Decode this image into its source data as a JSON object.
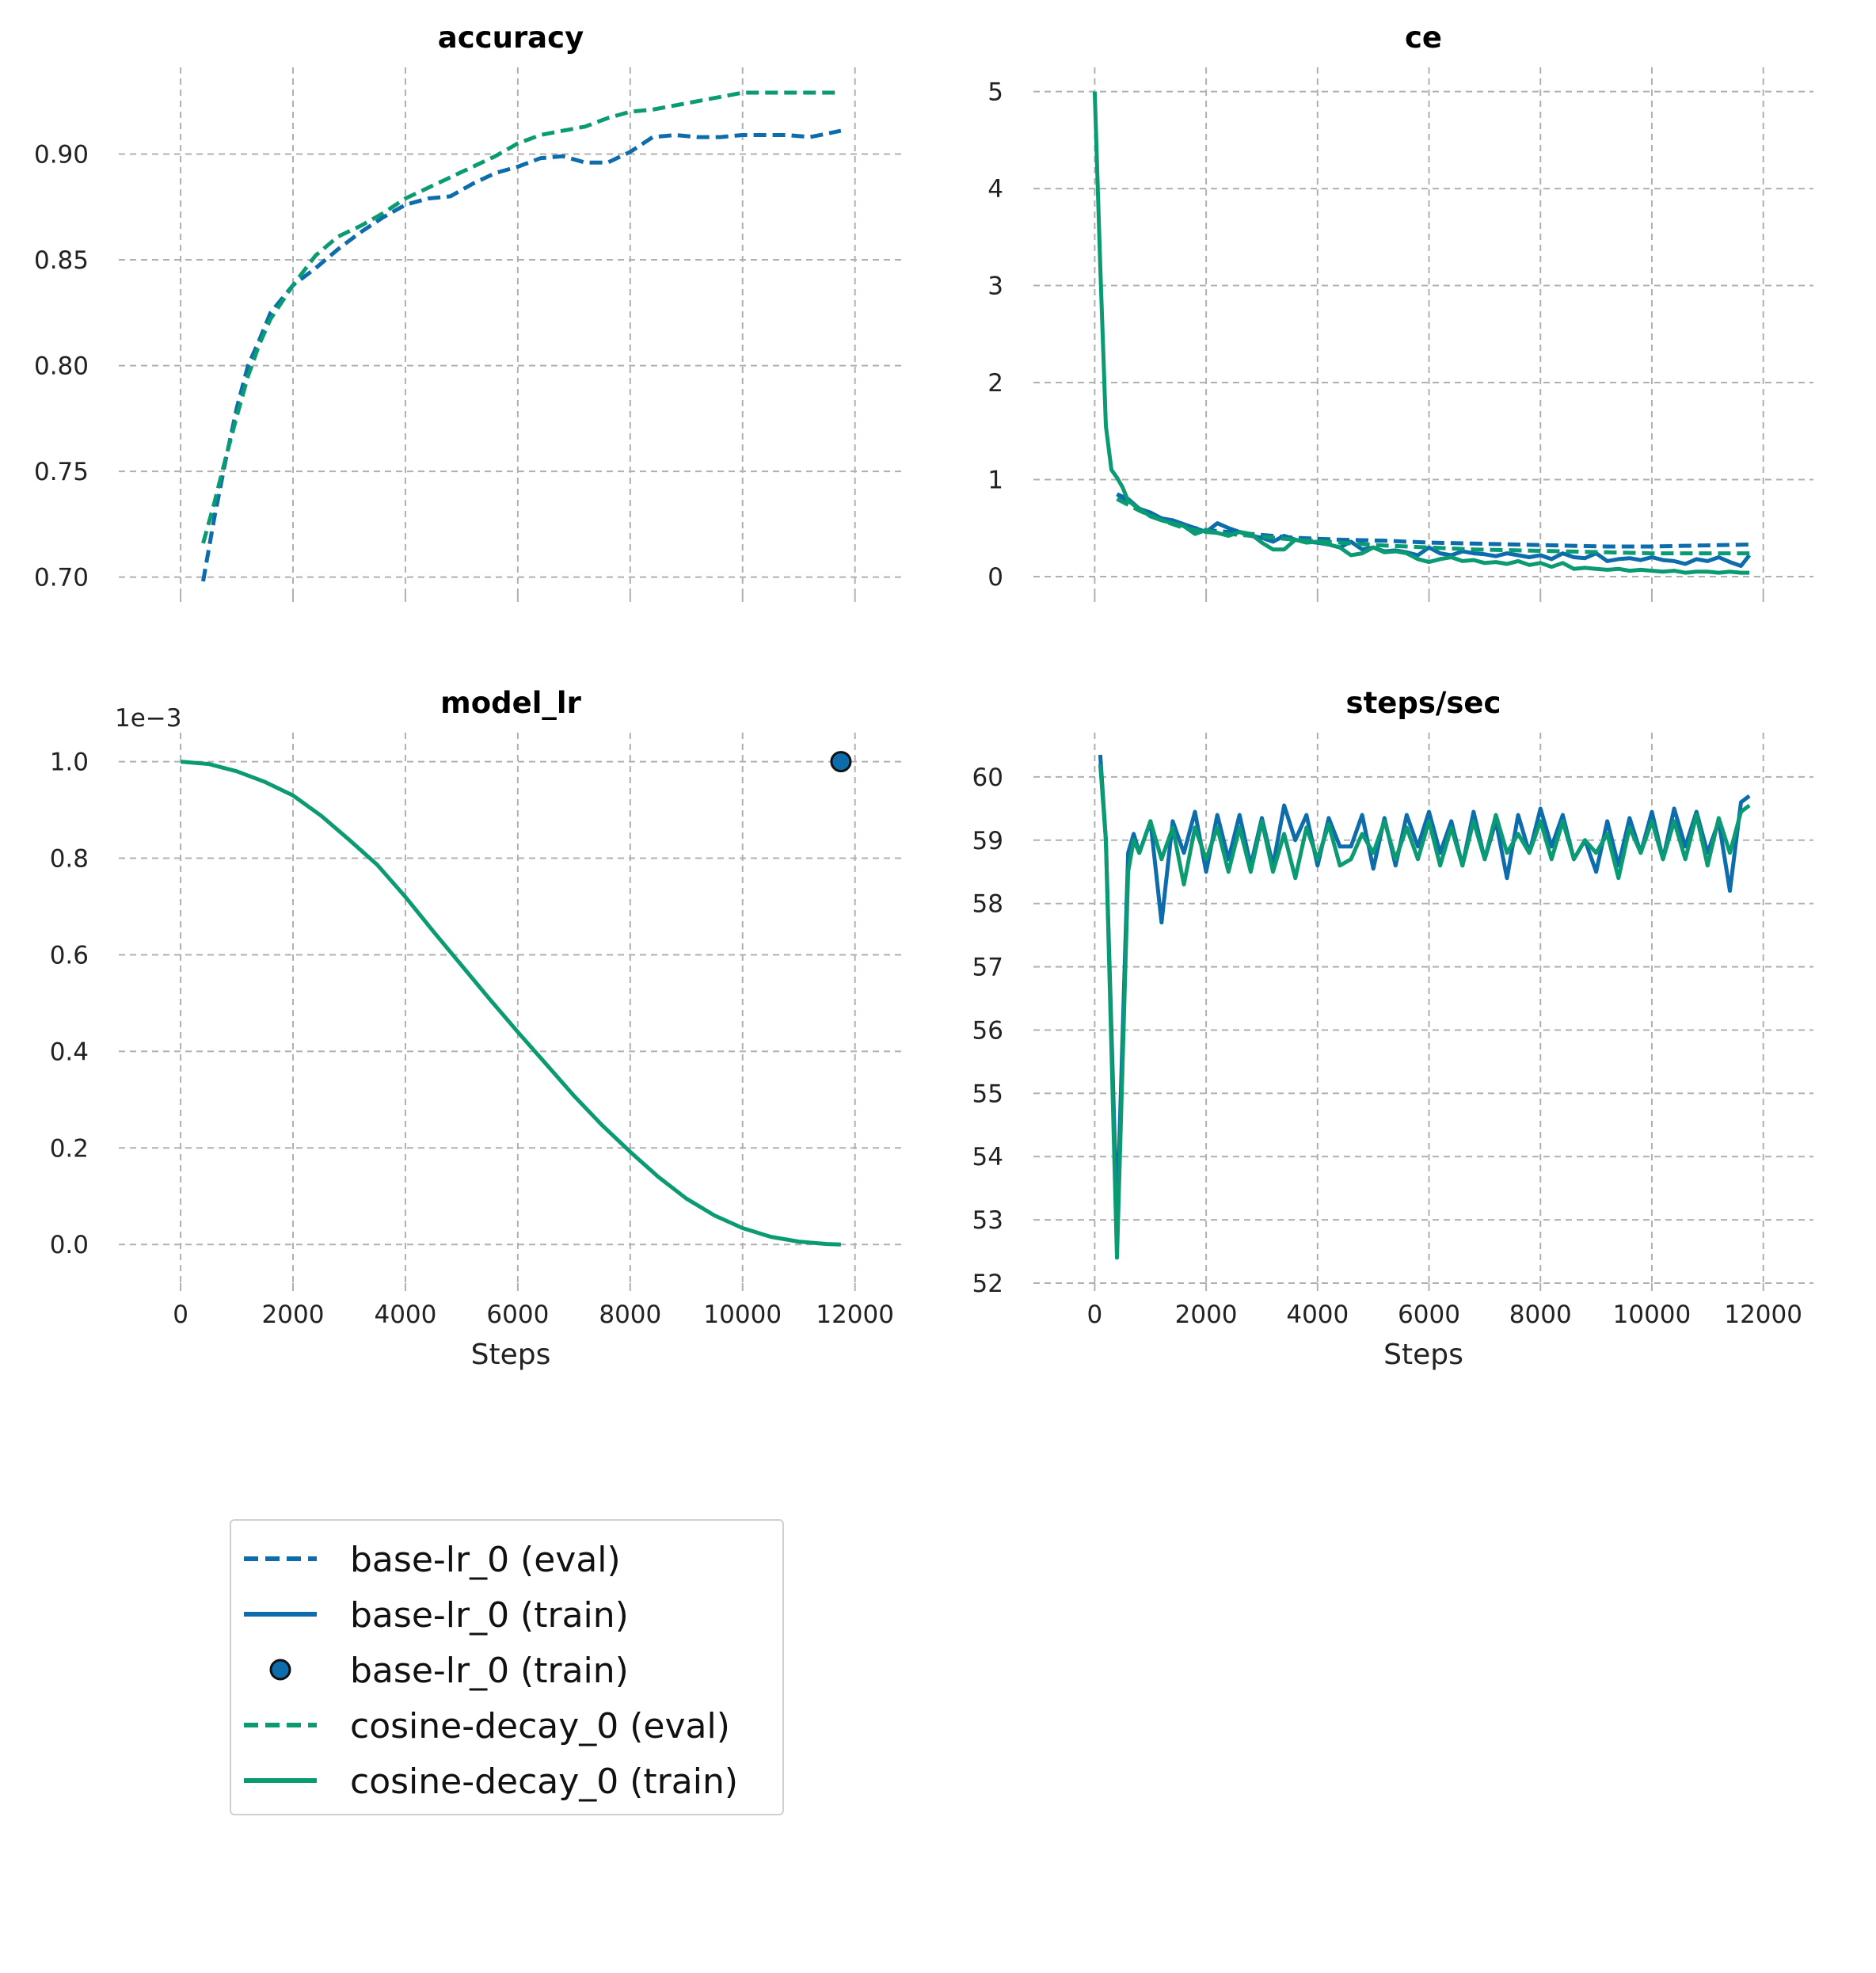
{
  "colors": {
    "base": "#0c6cac",
    "cosine": "#0b9b72",
    "grid": "#b0b0b0"
  },
  "xlabel": "Steps",
  "legend": {
    "items": [
      {
        "label": "base-lr_0 (eval)",
        "style": "dashed",
        "color": "#0c6cac"
      },
      {
        "label": "base-lr_0 (train)",
        "style": "solid",
        "color": "#0c6cac"
      },
      {
        "label": "base-lr_0 (train)",
        "style": "marker",
        "color": "#0c6cac"
      },
      {
        "label": "cosine-decay_0 (eval)",
        "style": "dashed",
        "color": "#0b9b72"
      },
      {
        "label": "cosine-decay_0 (train)",
        "style": "solid",
        "color": "#0b9b72"
      }
    ]
  },
  "chart_data": [
    {
      "id": "accuracy",
      "type": "line",
      "title": "accuracy",
      "xlabel": "",
      "ylabel": "",
      "xlim": [
        -1100,
        12850
      ],
      "ylim": [
        0.692,
        0.941
      ],
      "xticks": [
        0,
        2000,
        4000,
        6000,
        8000,
        10000,
        12000
      ],
      "show_xtick_labels": false,
      "yticks": [
        0.7,
        0.75,
        0.8,
        0.85,
        0.9
      ],
      "ytick_labels": [
        "0.70",
        "0.75",
        "0.80",
        "0.85",
        "0.90"
      ],
      "grid": true,
      "series": [
        {
          "name": "base-lr_0 (eval)",
          "style": "dashed",
          "color": "#0c6cac",
          "x": [
            400,
            600,
            800,
            1000,
            1200,
            1400,
            1600,
            2000,
            2400,
            2800,
            3200,
            3600,
            4000,
            4400,
            4800,
            5200,
            5600,
            6000,
            6400,
            6800,
            7200,
            7600,
            8000,
            8400,
            8800,
            9200,
            9600,
            10000,
            10400,
            10800,
            11200,
            11750
          ],
          "y": [
            0.698,
            0.728,
            0.755,
            0.78,
            0.8,
            0.812,
            0.825,
            0.838,
            0.846,
            0.855,
            0.863,
            0.87,
            0.876,
            0.879,
            0.88,
            0.886,
            0.891,
            0.894,
            0.898,
            0.899,
            0.896,
            0.896,
            0.901,
            0.908,
            0.909,
            0.908,
            0.908,
            0.909,
            0.909,
            0.909,
            0.908,
            0.911
          ]
        },
        {
          "name": "cosine-decay_0 (eval)",
          "style": "dashed",
          "color": "#0b9b72",
          "x": [
            400,
            600,
            800,
            1000,
            1200,
            1400,
            1600,
            2000,
            2400,
            2800,
            3200,
            3600,
            4000,
            4400,
            4800,
            5200,
            5600,
            6000,
            6400,
            6800,
            7200,
            7600,
            8000,
            8400,
            8800,
            9200,
            9600,
            10000,
            10400,
            10800,
            11200,
            11750
          ],
          "y": [
            0.716,
            0.735,
            0.756,
            0.776,
            0.795,
            0.81,
            0.822,
            0.838,
            0.852,
            0.861,
            0.866,
            0.872,
            0.879,
            0.884,
            0.889,
            0.894,
            0.899,
            0.905,
            0.909,
            0.911,
            0.913,
            0.917,
            0.92,
            0.921,
            0.923,
            0.925,
            0.927,
            0.929,
            0.929,
            0.929,
            0.929,
            0.929
          ]
        }
      ]
    },
    {
      "id": "ce",
      "type": "line",
      "title": "ce",
      "xlabel": "",
      "ylabel": "",
      "xlim": [
        -1100,
        12900
      ],
      "ylim": [
        -0.18,
        5.25
      ],
      "xticks": [
        0,
        2000,
        4000,
        6000,
        8000,
        10000,
        12000
      ],
      "show_xtick_labels": false,
      "yticks": [
        0,
        1,
        2,
        3,
        4,
        5
      ],
      "ytick_labels": [
        "0",
        "1",
        "2",
        "3",
        "4",
        "5"
      ],
      "grid": true,
      "series": [
        {
          "name": "base-lr_0 (eval)",
          "style": "dashed",
          "color": "#0c6cac",
          "x": [
            400,
            800,
            1200,
            1600,
            2000,
            2800,
            3600,
            4400,
            5200,
            6000,
            6800,
            7600,
            8400,
            9200,
            10000,
            10800,
            11750
          ],
          "y": [
            0.85,
            0.7,
            0.6,
            0.52,
            0.48,
            0.44,
            0.4,
            0.38,
            0.37,
            0.35,
            0.34,
            0.33,
            0.32,
            0.31,
            0.31,
            0.32,
            0.33
          ]
        },
        {
          "name": "base-lr_0 (train)",
          "style": "solid",
          "color": "#0c6cac",
          "x": [
            400,
            600,
            800,
            1000,
            1200,
            1400,
            1600,
            1800,
            2000,
            2200,
            2400,
            2600,
            2800,
            3000,
            3200,
            3400,
            3600,
            3800,
            4000,
            4200,
            4400,
            4600,
            4800,
            5000,
            5200,
            5400,
            5600,
            5800,
            6000,
            6200,
            6400,
            6600,
            6800,
            7000,
            7200,
            7400,
            7600,
            7800,
            8000,
            8200,
            8400,
            8600,
            8800,
            9000,
            9200,
            9400,
            9600,
            9800,
            10000,
            10200,
            10400,
            10600,
            10800,
            11000,
            11200,
            11400,
            11600,
            11750
          ],
          "y": [
            0.85,
            0.8,
            0.7,
            0.66,
            0.6,
            0.58,
            0.54,
            0.5,
            0.46,
            0.55,
            0.5,
            0.46,
            0.42,
            0.4,
            0.36,
            0.42,
            0.38,
            0.36,
            0.35,
            0.33,
            0.3,
            0.36,
            0.28,
            0.3,
            0.26,
            0.27,
            0.25,
            0.22,
            0.3,
            0.24,
            0.22,
            0.26,
            0.24,
            0.23,
            0.21,
            0.24,
            0.22,
            0.2,
            0.22,
            0.18,
            0.24,
            0.2,
            0.19,
            0.24,
            0.16,
            0.18,
            0.19,
            0.17,
            0.2,
            0.17,
            0.16,
            0.13,
            0.18,
            0.16,
            0.2,
            0.15,
            0.11,
            0.22
          ]
        },
        {
          "name": "cosine-decay_0 (eval)",
          "style": "dashed",
          "color": "#0b9b72",
          "x": [
            400,
            800,
            1200,
            1600,
            2000,
            2800,
            3600,
            4400,
            5200,
            6000,
            6800,
            7600,
            8400,
            9200,
            10000,
            10800,
            11750
          ],
          "y": [
            0.8,
            0.68,
            0.58,
            0.5,
            0.46,
            0.42,
            0.38,
            0.35,
            0.32,
            0.3,
            0.28,
            0.27,
            0.26,
            0.25,
            0.24,
            0.24,
            0.24
          ]
        },
        {
          "name": "cosine-decay_0 (train)",
          "style": "solid",
          "color": "#0b9b72",
          "x": [
            0,
            100,
            200,
            300,
            400,
            500,
            600,
            800,
            1000,
            1200,
            1400,
            1600,
            1800,
            2000,
            2200,
            2400,
            2600,
            2800,
            3000,
            3200,
            3400,
            3600,
            3800,
            4000,
            4200,
            4400,
            4600,
            4800,
            5000,
            5200,
            5400,
            5600,
            5800,
            6000,
            6200,
            6400,
            6600,
            6800,
            7000,
            7200,
            7400,
            7600,
            7800,
            8000,
            8200,
            8400,
            8600,
            8800,
            9000,
            9200,
            9400,
            9600,
            9800,
            10000,
            10200,
            10400,
            10600,
            10800,
            11000,
            11200,
            11400,
            11600,
            11750
          ],
          "y": [
            5.0,
            3.2,
            1.55,
            1.1,
            1.02,
            0.92,
            0.78,
            0.7,
            0.62,
            0.58,
            0.55,
            0.52,
            0.44,
            0.48,
            0.45,
            0.42,
            0.46,
            0.44,
            0.35,
            0.28,
            0.28,
            0.38,
            0.35,
            0.36,
            0.33,
            0.3,
            0.22,
            0.24,
            0.3,
            0.25,
            0.26,
            0.24,
            0.18,
            0.15,
            0.18,
            0.2,
            0.16,
            0.17,
            0.14,
            0.15,
            0.13,
            0.16,
            0.12,
            0.14,
            0.1,
            0.14,
            0.08,
            0.09,
            0.08,
            0.07,
            0.08,
            0.06,
            0.07,
            0.06,
            0.05,
            0.06,
            0.04,
            0.05,
            0.05,
            0.04,
            0.05,
            0.04,
            0.04
          ]
        }
      ]
    },
    {
      "id": "model_lr",
      "type": "line",
      "title": "model_lr",
      "xlabel": "Steps",
      "ylabel": "",
      "offset_label": "1e−3",
      "xlim": [
        -1100,
        12850
      ],
      "ylim": [
        -0.08,
        1.06
      ],
      "xticks": [
        0,
        2000,
        4000,
        6000,
        8000,
        10000,
        12000
      ],
      "xtick_labels": [
        "0",
        "2000",
        "4000",
        "6000",
        "8000",
        "10000",
        "12000"
      ],
      "show_xtick_labels": true,
      "yticks": [
        0.0,
        0.2,
        0.4,
        0.6,
        0.8,
        1.0
      ],
      "ytick_labels": [
        "0.0",
        "0.2",
        "0.4",
        "0.6",
        "0.8",
        "1.0"
      ],
      "grid": true,
      "series": [
        {
          "name": "cosine-decay_0 (train)",
          "style": "solid",
          "color": "#0b9b72",
          "x": [
            0,
            500,
            1000,
            1500,
            2000,
            2500,
            3000,
            3500,
            4000,
            4500,
            5000,
            5500,
            6000,
            6500,
            7000,
            7500,
            8000,
            8500,
            9000,
            9500,
            10000,
            10500,
            11000,
            11500,
            11750
          ],
          "y": [
            1.0,
            0.995,
            0.98,
            0.958,
            0.93,
            0.888,
            0.838,
            0.786,
            0.72,
            0.648,
            0.578,
            0.508,
            0.44,
            0.374,
            0.308,
            0.247,
            0.192,
            0.14,
            0.095,
            0.06,
            0.034,
            0.016,
            0.006,
            0.001,
            0.0
          ]
        },
        {
          "name": "base-lr_0 (train)",
          "style": "marker",
          "color": "#0c6cac",
          "x": [
            11750
          ],
          "y": [
            1.0
          ]
        }
      ]
    },
    {
      "id": "steps_sec",
      "type": "line",
      "title": "steps/sec",
      "xlabel": "Steps",
      "ylabel": "",
      "xlim": [
        -1100,
        12900
      ],
      "ylim": [
        52.0,
        60.7
      ],
      "xticks": [
        0,
        2000,
        4000,
        6000,
        8000,
        10000,
        12000
      ],
      "xtick_labels": [
        "0",
        "2000",
        "4000",
        "6000",
        "8000",
        "10000",
        "12000"
      ],
      "show_xtick_labels": true,
      "yticks": [
        52,
        53,
        54,
        55,
        56,
        57,
        58,
        59,
        60
      ],
      "ytick_labels": [
        "52",
        "53",
        "54",
        "55",
        "56",
        "57",
        "58",
        "59",
        "60"
      ],
      "grid": true,
      "series": [
        {
          "name": "base-lr_0 (train)",
          "style": "solid",
          "color": "#0c6cac",
          "x": [
            100,
            200,
            400,
            600,
            700,
            800,
            1000,
            1200,
            1400,
            1600,
            1800,
            2000,
            2200,
            2400,
            2600,
            2800,
            3000,
            3200,
            3400,
            3600,
            3800,
            4000,
            4200,
            4400,
            4600,
            4800,
            5000,
            5200,
            5400,
            5600,
            5800,
            6000,
            6200,
            6400,
            6600,
            6800,
            7000,
            7200,
            7400,
            7600,
            7800,
            8000,
            8200,
            8400,
            8600,
            8800,
            9000,
            9200,
            9400,
            9600,
            9800,
            10000,
            10200,
            10400,
            10600,
            10800,
            11000,
            11200,
            11400,
            11600,
            11750
          ],
          "y": [
            60.35,
            59.0,
            53.0,
            58.8,
            59.1,
            58.8,
            59.3,
            57.7,
            59.3,
            58.8,
            59.45,
            58.5,
            59.4,
            58.7,
            59.4,
            58.6,
            59.35,
            58.6,
            59.55,
            59.0,
            59.4,
            58.6,
            59.35,
            58.9,
            58.9,
            59.4,
            58.55,
            59.35,
            58.6,
            59.4,
            58.9,
            59.45,
            58.8,
            59.3,
            58.6,
            59.45,
            58.7,
            59.3,
            58.4,
            59.4,
            58.8,
            59.5,
            58.9,
            59.4,
            58.7,
            59.0,
            58.5,
            59.3,
            58.6,
            59.35,
            58.8,
            59.45,
            58.7,
            59.5,
            58.9,
            59.45,
            58.8,
            59.3,
            58.2,
            59.6,
            59.7
          ]
        },
        {
          "name": "cosine-decay_0 (train)",
          "style": "solid",
          "color": "#0b9b72",
          "x": [
            100,
            200,
            400,
            600,
            700,
            800,
            1000,
            1200,
            1400,
            1600,
            1800,
            2000,
            2200,
            2400,
            2600,
            2800,
            3000,
            3200,
            3400,
            3600,
            3800,
            4000,
            4200,
            4400,
            4600,
            4800,
            5000,
            5200,
            5400,
            5600,
            5800,
            6000,
            6200,
            6400,
            6600,
            6800,
            7000,
            7200,
            7400,
            7600,
            7800,
            8000,
            8200,
            8400,
            8600,
            8800,
            9000,
            9200,
            9400,
            9600,
            9800,
            10000,
            10200,
            10400,
            10600,
            10800,
            11000,
            11200,
            11400,
            11600,
            11750
          ],
          "y": [
            60.2,
            59.0,
            52.4,
            58.5,
            59.0,
            58.8,
            59.3,
            58.7,
            59.2,
            58.3,
            59.2,
            58.7,
            59.2,
            58.5,
            59.2,
            58.5,
            59.3,
            58.5,
            59.1,
            58.4,
            59.2,
            58.7,
            59.25,
            58.6,
            58.7,
            59.1,
            58.8,
            59.3,
            58.7,
            59.2,
            58.7,
            59.3,
            58.6,
            59.2,
            58.6,
            59.3,
            58.7,
            59.4,
            58.8,
            59.1,
            58.8,
            59.3,
            58.7,
            59.3,
            58.7,
            59.0,
            58.8,
            59.1,
            58.4,
            59.2,
            58.8,
            59.3,
            58.7,
            59.3,
            58.7,
            59.4,
            58.6,
            59.35,
            58.8,
            59.45,
            59.55
          ]
        }
      ]
    }
  ]
}
